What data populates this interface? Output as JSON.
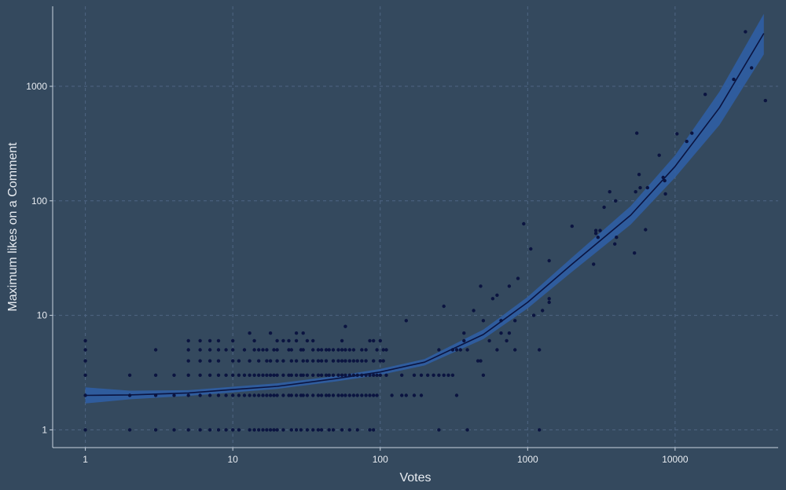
{
  "colors": {
    "background": "#34495e",
    "grid": "#4f6683",
    "axis": "#c9d3df",
    "text": "#e8ecf1",
    "points": "#0b1440",
    "smooth_line": "#0b1440",
    "ribbon": "#2f5fa8"
  },
  "chart_data": {
    "type": "scatter",
    "title": "",
    "xlabel": "Votes",
    "ylabel": "Maximum likes on a Comment",
    "x_scale": "log10",
    "y_scale": "log10",
    "xlim": [
      0.6,
      50000
    ],
    "ylim": [
      0.7,
      5000
    ],
    "grid": true,
    "legend": "none",
    "x_ticks": [
      {
        "value": 1,
        "label": "1"
      },
      {
        "value": 10,
        "label": "10"
      },
      {
        "value": 100,
        "label": "100"
      },
      {
        "value": 1000,
        "label": "1000"
      },
      {
        "value": 10000,
        "label": "10000"
      }
    ],
    "y_ticks": [
      {
        "value": 1,
        "label": "1"
      },
      {
        "value": 10,
        "label": "10"
      },
      {
        "value": 100,
        "label": "100"
      },
      {
        "value": 1000,
        "label": "1000"
      }
    ],
    "series": [
      {
        "kind": "points",
        "points": [
          [
            1,
            1
          ],
          [
            1,
            2
          ],
          [
            1,
            3
          ],
          [
            1,
            4
          ],
          [
            1,
            5
          ],
          [
            1,
            6
          ],
          [
            2,
            1
          ],
          [
            2,
            2
          ],
          [
            2,
            3
          ],
          [
            3,
            1
          ],
          [
            3,
            2
          ],
          [
            3,
            3
          ],
          [
            3,
            5
          ],
          [
            4,
            1
          ],
          [
            4,
            2
          ],
          [
            4,
            3
          ],
          [
            5,
            1
          ],
          [
            5,
            2
          ],
          [
            5,
            3
          ],
          [
            5,
            4
          ],
          [
            5,
            5
          ],
          [
            5,
            6
          ],
          [
            6,
            1
          ],
          [
            6,
            2
          ],
          [
            6,
            3
          ],
          [
            6,
            4
          ],
          [
            6,
            5
          ],
          [
            6,
            6
          ],
          [
            7,
            1
          ],
          [
            7,
            2
          ],
          [
            7,
            3
          ],
          [
            7,
            4
          ],
          [
            7,
            5
          ],
          [
            7,
            6
          ],
          [
            8,
            1
          ],
          [
            8,
            2
          ],
          [
            8,
            3
          ],
          [
            8,
            4
          ],
          [
            8,
            5
          ],
          [
            8,
            6
          ],
          [
            9,
            1
          ],
          [
            9,
            2
          ],
          [
            9,
            3
          ],
          [
            9,
            5
          ],
          [
            10,
            1
          ],
          [
            10,
            2
          ],
          [
            10,
            3
          ],
          [
            10,
            4
          ],
          [
            10,
            5
          ],
          [
            10,
            6
          ],
          [
            11,
            1
          ],
          [
            11,
            2
          ],
          [
            11,
            3
          ],
          [
            11,
            4
          ],
          [
            12,
            2
          ],
          [
            12,
            3
          ],
          [
            12,
            5
          ],
          [
            13,
            1
          ],
          [
            13,
            2
          ],
          [
            13,
            3
          ],
          [
            13,
            4
          ],
          [
            13,
            7
          ],
          [
            14,
            1
          ],
          [
            14,
            2
          ],
          [
            14,
            3
          ],
          [
            14,
            5
          ],
          [
            14,
            6
          ],
          [
            15,
            1
          ],
          [
            15,
            2
          ],
          [
            15,
            3
          ],
          [
            15,
            4
          ],
          [
            15,
            5
          ],
          [
            16,
            1
          ],
          [
            16,
            2
          ],
          [
            16,
            3
          ],
          [
            16,
            5
          ],
          [
            17,
            1
          ],
          [
            17,
            2
          ],
          [
            17,
            3
          ],
          [
            17,
            4
          ],
          [
            17,
            5
          ],
          [
            18,
            1
          ],
          [
            18,
            2
          ],
          [
            18,
            3
          ],
          [
            18,
            4
          ],
          [
            18,
            7
          ],
          [
            19,
            1
          ],
          [
            19,
            2
          ],
          [
            19,
            3
          ],
          [
            19,
            5
          ],
          [
            20,
            1
          ],
          [
            20,
            2
          ],
          [
            20,
            3
          ],
          [
            20,
            4
          ],
          [
            20,
            5
          ],
          [
            20,
            6
          ],
          [
            22,
            1
          ],
          [
            22,
            2
          ],
          [
            22,
            3
          ],
          [
            22,
            4
          ],
          [
            22,
            6
          ],
          [
            24,
            2
          ],
          [
            24,
            3
          ],
          [
            24,
            5
          ],
          [
            24,
            6
          ],
          [
            25,
            1
          ],
          [
            25,
            2
          ],
          [
            25,
            3
          ],
          [
            25,
            4
          ],
          [
            25,
            5
          ],
          [
            27,
            1
          ],
          [
            27,
            2
          ],
          [
            27,
            3
          ],
          [
            27,
            4
          ],
          [
            27,
            6
          ],
          [
            27,
            7
          ],
          [
            29,
            1
          ],
          [
            29,
            2
          ],
          [
            29,
            3
          ],
          [
            29,
            5
          ],
          [
            30,
            2
          ],
          [
            30,
            3
          ],
          [
            30,
            4
          ],
          [
            30,
            5
          ],
          [
            30,
            7
          ],
          [
            32,
            1
          ],
          [
            32,
            2
          ],
          [
            32,
            3
          ],
          [
            32,
            4
          ],
          [
            32,
            6
          ],
          [
            35,
            1
          ],
          [
            35,
            2
          ],
          [
            35,
            3
          ],
          [
            35,
            4
          ],
          [
            35,
            5
          ],
          [
            35,
            6
          ],
          [
            38,
            1
          ],
          [
            38,
            2
          ],
          [
            38,
            3
          ],
          [
            38,
            4
          ],
          [
            38,
            5
          ],
          [
            40,
            1
          ],
          [
            40,
            2
          ],
          [
            40,
            3
          ],
          [
            40,
            4
          ],
          [
            40,
            5
          ],
          [
            43,
            2
          ],
          [
            43,
            3
          ],
          [
            43,
            4
          ],
          [
            43,
            5
          ],
          [
            45,
            1
          ],
          [
            45,
            2
          ],
          [
            45,
            3
          ],
          [
            45,
            5
          ],
          [
            48,
            1
          ],
          [
            48,
            2
          ],
          [
            48,
            3
          ],
          [
            48,
            4
          ],
          [
            48,
            5
          ],
          [
            52,
            2
          ],
          [
            52,
            3
          ],
          [
            52,
            4
          ],
          [
            52,
            5
          ],
          [
            55,
            1
          ],
          [
            55,
            2
          ],
          [
            55,
            3
          ],
          [
            55,
            4
          ],
          [
            55,
            5
          ],
          [
            55,
            6
          ],
          [
            58,
            2
          ],
          [
            58,
            3
          ],
          [
            58,
            4
          ],
          [
            58,
            5
          ],
          [
            58,
            8
          ],
          [
            62,
            1
          ],
          [
            62,
            2
          ],
          [
            62,
            3
          ],
          [
            62,
            4
          ],
          [
            62,
            5
          ],
          [
            66,
            2
          ],
          [
            66,
            3
          ],
          [
            66,
            4
          ],
          [
            66,
            5
          ],
          [
            70,
            1
          ],
          [
            70,
            2
          ],
          [
            70,
            3
          ],
          [
            70,
            4
          ],
          [
            75,
            2
          ],
          [
            75,
            3
          ],
          [
            75,
            4
          ],
          [
            75,
            5
          ],
          [
            80,
            2
          ],
          [
            80,
            3
          ],
          [
            80,
            4
          ],
          [
            80,
            5
          ],
          [
            85,
            1
          ],
          [
            85,
            2
          ],
          [
            85,
            3
          ],
          [
            85,
            6
          ],
          [
            90,
            1
          ],
          [
            90,
            2
          ],
          [
            90,
            3
          ],
          [
            90,
            4
          ],
          [
            90,
            6
          ],
          [
            95,
            2
          ],
          [
            95,
            3
          ],
          [
            95,
            5
          ],
          [
            100,
            3
          ],
          [
            100,
            4
          ],
          [
            100,
            6
          ],
          [
            105,
            4
          ],
          [
            105,
            5
          ],
          [
            110,
            3
          ],
          [
            110,
            5
          ],
          [
            120,
            2
          ],
          [
            140,
            2
          ],
          [
            140,
            3
          ],
          [
            150,
            2
          ],
          [
            150,
            9
          ],
          [
            170,
            2
          ],
          [
            170,
            3
          ],
          [
            190,
            2
          ],
          [
            190,
            3
          ],
          [
            210,
            3
          ],
          [
            230,
            3
          ],
          [
            250,
            1
          ],
          [
            250,
            3
          ],
          [
            250,
            5
          ],
          [
            270,
            3
          ],
          [
            270,
            12
          ],
          [
            290,
            3
          ],
          [
            310,
            3
          ],
          [
            310,
            5
          ],
          [
            330,
            2
          ],
          [
            330,
            5
          ],
          [
            350,
            5
          ],
          [
            370,
            6
          ],
          [
            370,
            7
          ],
          [
            390,
            1
          ],
          [
            390,
            5
          ],
          [
            430,
            11
          ],
          [
            460,
            4
          ],
          [
            480,
            4
          ],
          [
            480,
            18
          ],
          [
            500,
            3
          ],
          [
            500,
            9
          ],
          [
            550,
            6
          ],
          [
            580,
            14
          ],
          [
            620,
            5
          ],
          [
            620,
            15
          ],
          [
            660,
            7
          ],
          [
            660,
            9
          ],
          [
            720,
            6
          ],
          [
            750,
            7
          ],
          [
            750,
            18
          ],
          [
            820,
            5
          ],
          [
            820,
            9
          ],
          [
            860,
            21
          ],
          [
            940,
            63
          ],
          [
            1050,
            38
          ],
          [
            1100,
            10
          ],
          [
            1200,
            5
          ],
          [
            1200,
            1
          ],
          [
            1260,
            11
          ],
          [
            1400,
            13
          ],
          [
            1400,
            14
          ],
          [
            1400,
            30
          ],
          [
            2000,
            60
          ],
          [
            2800,
            28
          ],
          [
            2900,
            52
          ],
          [
            2900,
            55
          ],
          [
            3000,
            48
          ],
          [
            3100,
            55
          ],
          [
            3300,
            88
          ],
          [
            3600,
            120
          ],
          [
            3900,
            42
          ],
          [
            3950,
            100
          ],
          [
            4000,
            48
          ],
          [
            5300,
            35
          ],
          [
            5400,
            120
          ],
          [
            5500,
            390
          ],
          [
            5700,
            170
          ],
          [
            5800,
            130
          ],
          [
            6300,
            56
          ],
          [
            6500,
            130
          ],
          [
            7800,
            250
          ],
          [
            8300,
            160
          ],
          [
            8500,
            150
          ],
          [
            8600,
            115
          ],
          [
            10300,
            385
          ],
          [
            12000,
            330
          ],
          [
            13000,
            390
          ],
          [
            16000,
            850
          ],
          [
            25000,
            1150
          ],
          [
            30000,
            3000
          ],
          [
            33000,
            1450
          ],
          [
            41000,
            750
          ]
        ]
      },
      {
        "kind": "smooth",
        "x": [
          1,
          2,
          5,
          10,
          20,
          50,
          100,
          200,
          500,
          1000,
          2000,
          5000,
          10000,
          20000,
          40000
        ],
        "y": [
          2.0,
          2.02,
          2.1,
          2.25,
          2.4,
          2.8,
          3.2,
          3.9,
          6.8,
          13,
          28,
          75,
          200,
          650,
          2900
        ],
        "lower": [
          1.7,
          1.85,
          1.98,
          2.12,
          2.28,
          2.65,
          3.02,
          3.65,
          6.2,
          11.5,
          24,
          62,
          160,
          460,
          1900
        ],
        "upper": [
          2.35,
          2.2,
          2.22,
          2.38,
          2.55,
          2.95,
          3.4,
          4.15,
          7.5,
          14.5,
          32,
          90,
          250,
          900,
          4300
        ]
      }
    ]
  }
}
